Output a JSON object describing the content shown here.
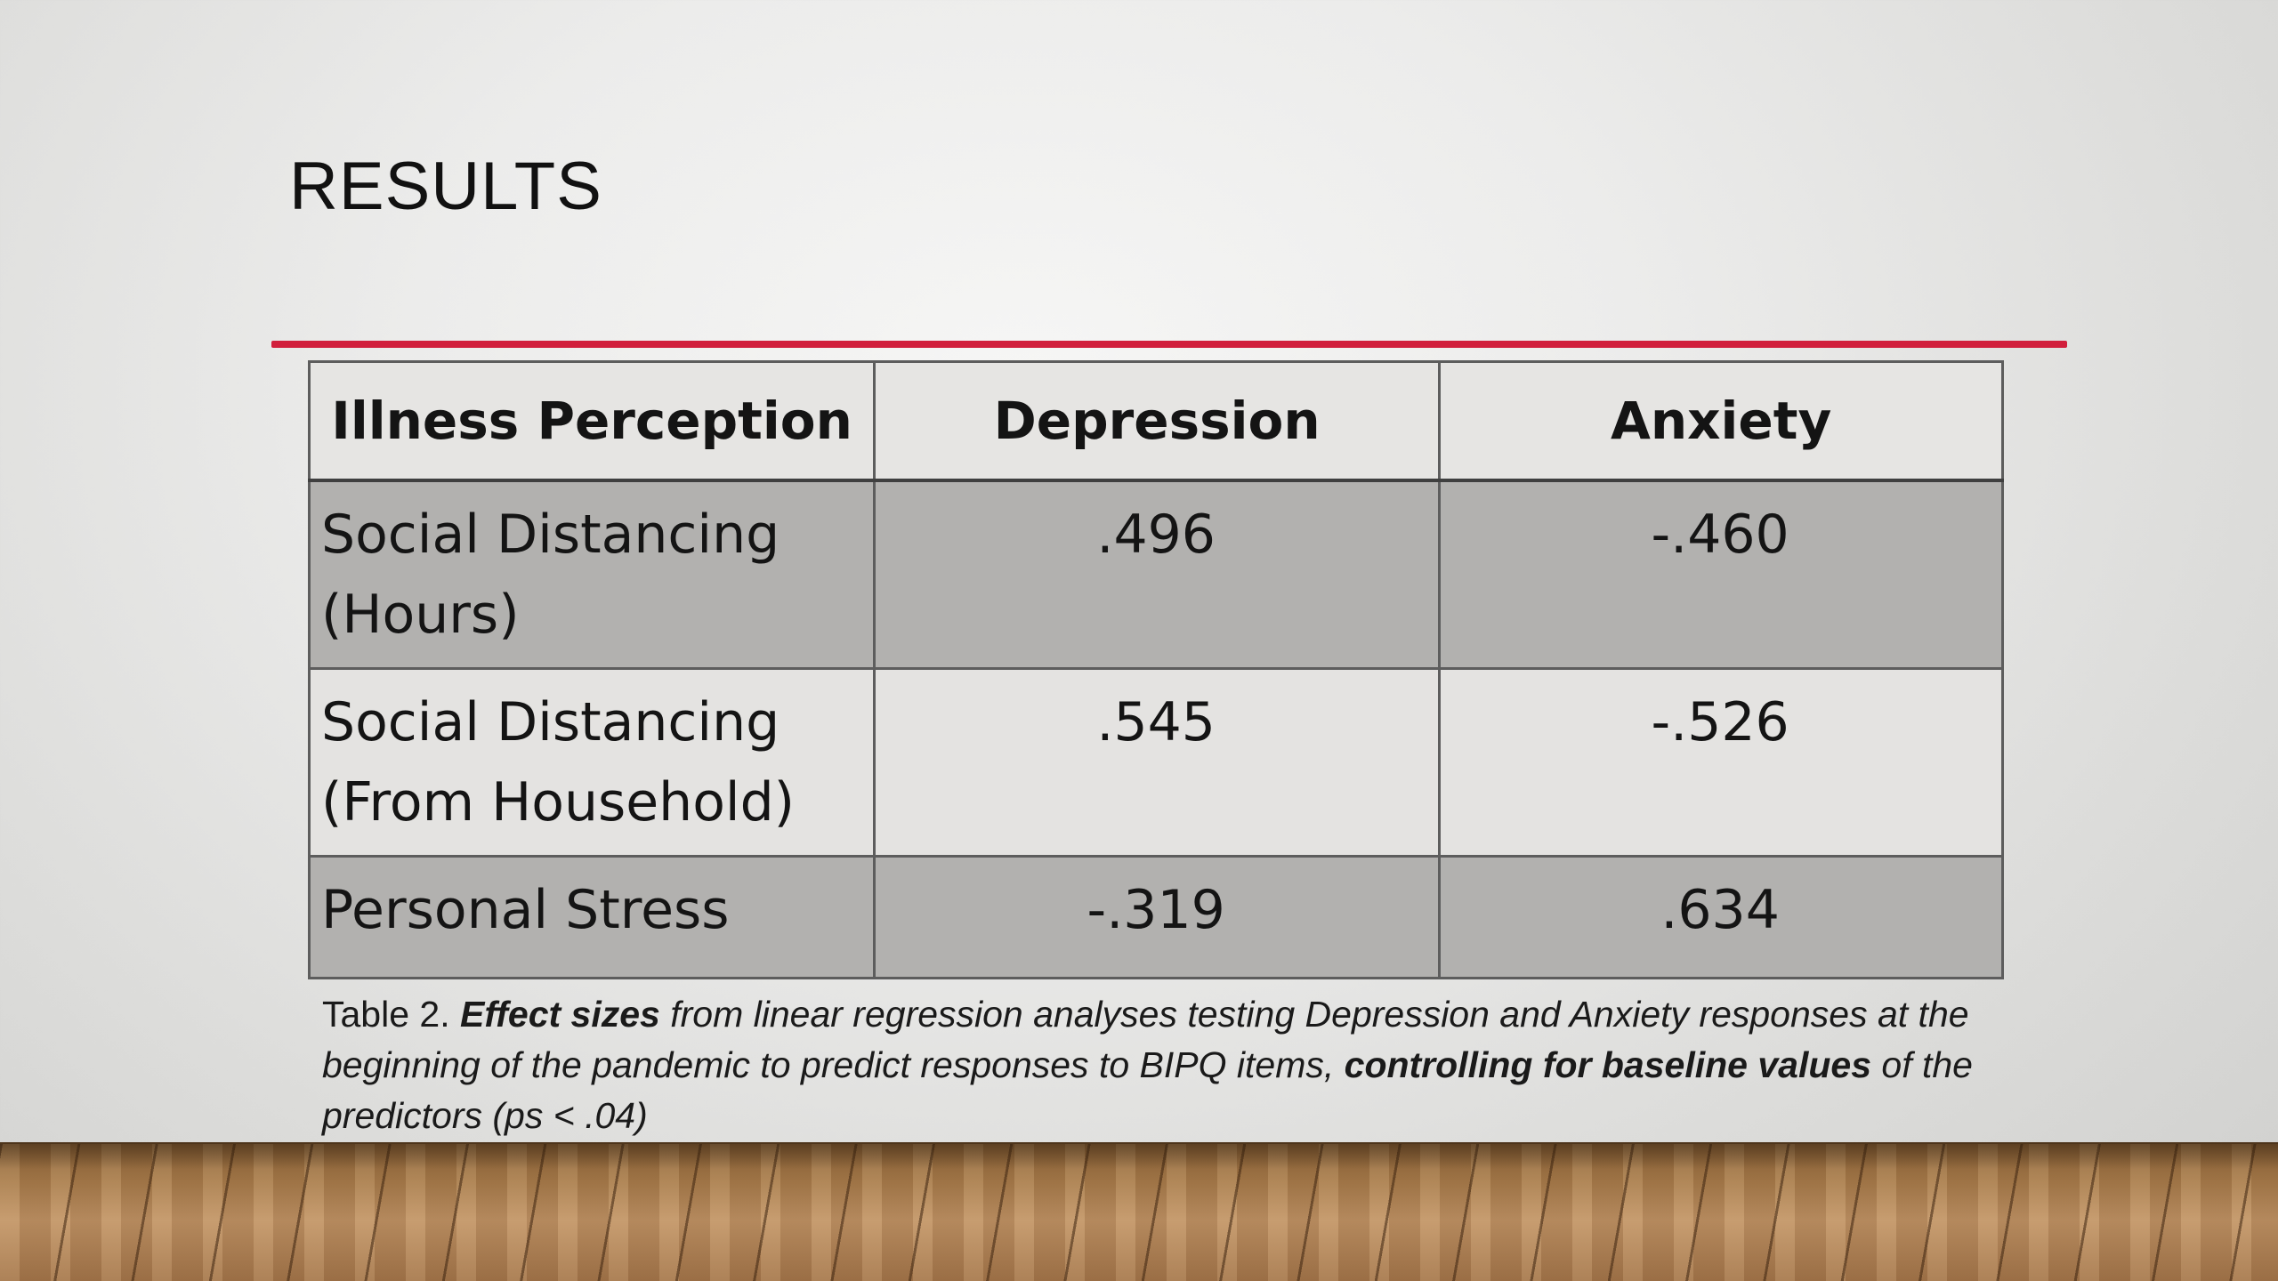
{
  "slide": {
    "title": "RESULTS",
    "accent_color": "#d11f3c"
  },
  "table": {
    "headers": [
      "Illness Perception",
      "Depression",
      "Anxiety"
    ],
    "rows": [
      {
        "perception_line1": "Social Distancing",
        "perception_line2": "(Hours)",
        "depression": ".496",
        "anxiety": "-.460"
      },
      {
        "perception_line1": "Social Distancing",
        "perception_line2": "(From Household)",
        "depression": ".545",
        "anxiety": "-.526"
      },
      {
        "perception_line1": "Personal Stress",
        "perception_line2": "",
        "depression": "-.319",
        "anxiety": ".634"
      }
    ]
  },
  "caption": {
    "prefix": "Table 2. ",
    "bold_italic_1": "Effect sizes",
    "italic_1": " from linear regression analyses testing Depression and Anxiety responses at the beginning of the pandemic to predict responses to BIPQ items, ",
    "bold_italic_2": "controlling for baseline values",
    "italic_2": " of the predictors (ps < .04)"
  },
  "colors": {
    "header_bg": "#e6e5e3",
    "shaded_row_bg": "#b2b1af",
    "light_row_bg": "#e4e3e1"
  }
}
